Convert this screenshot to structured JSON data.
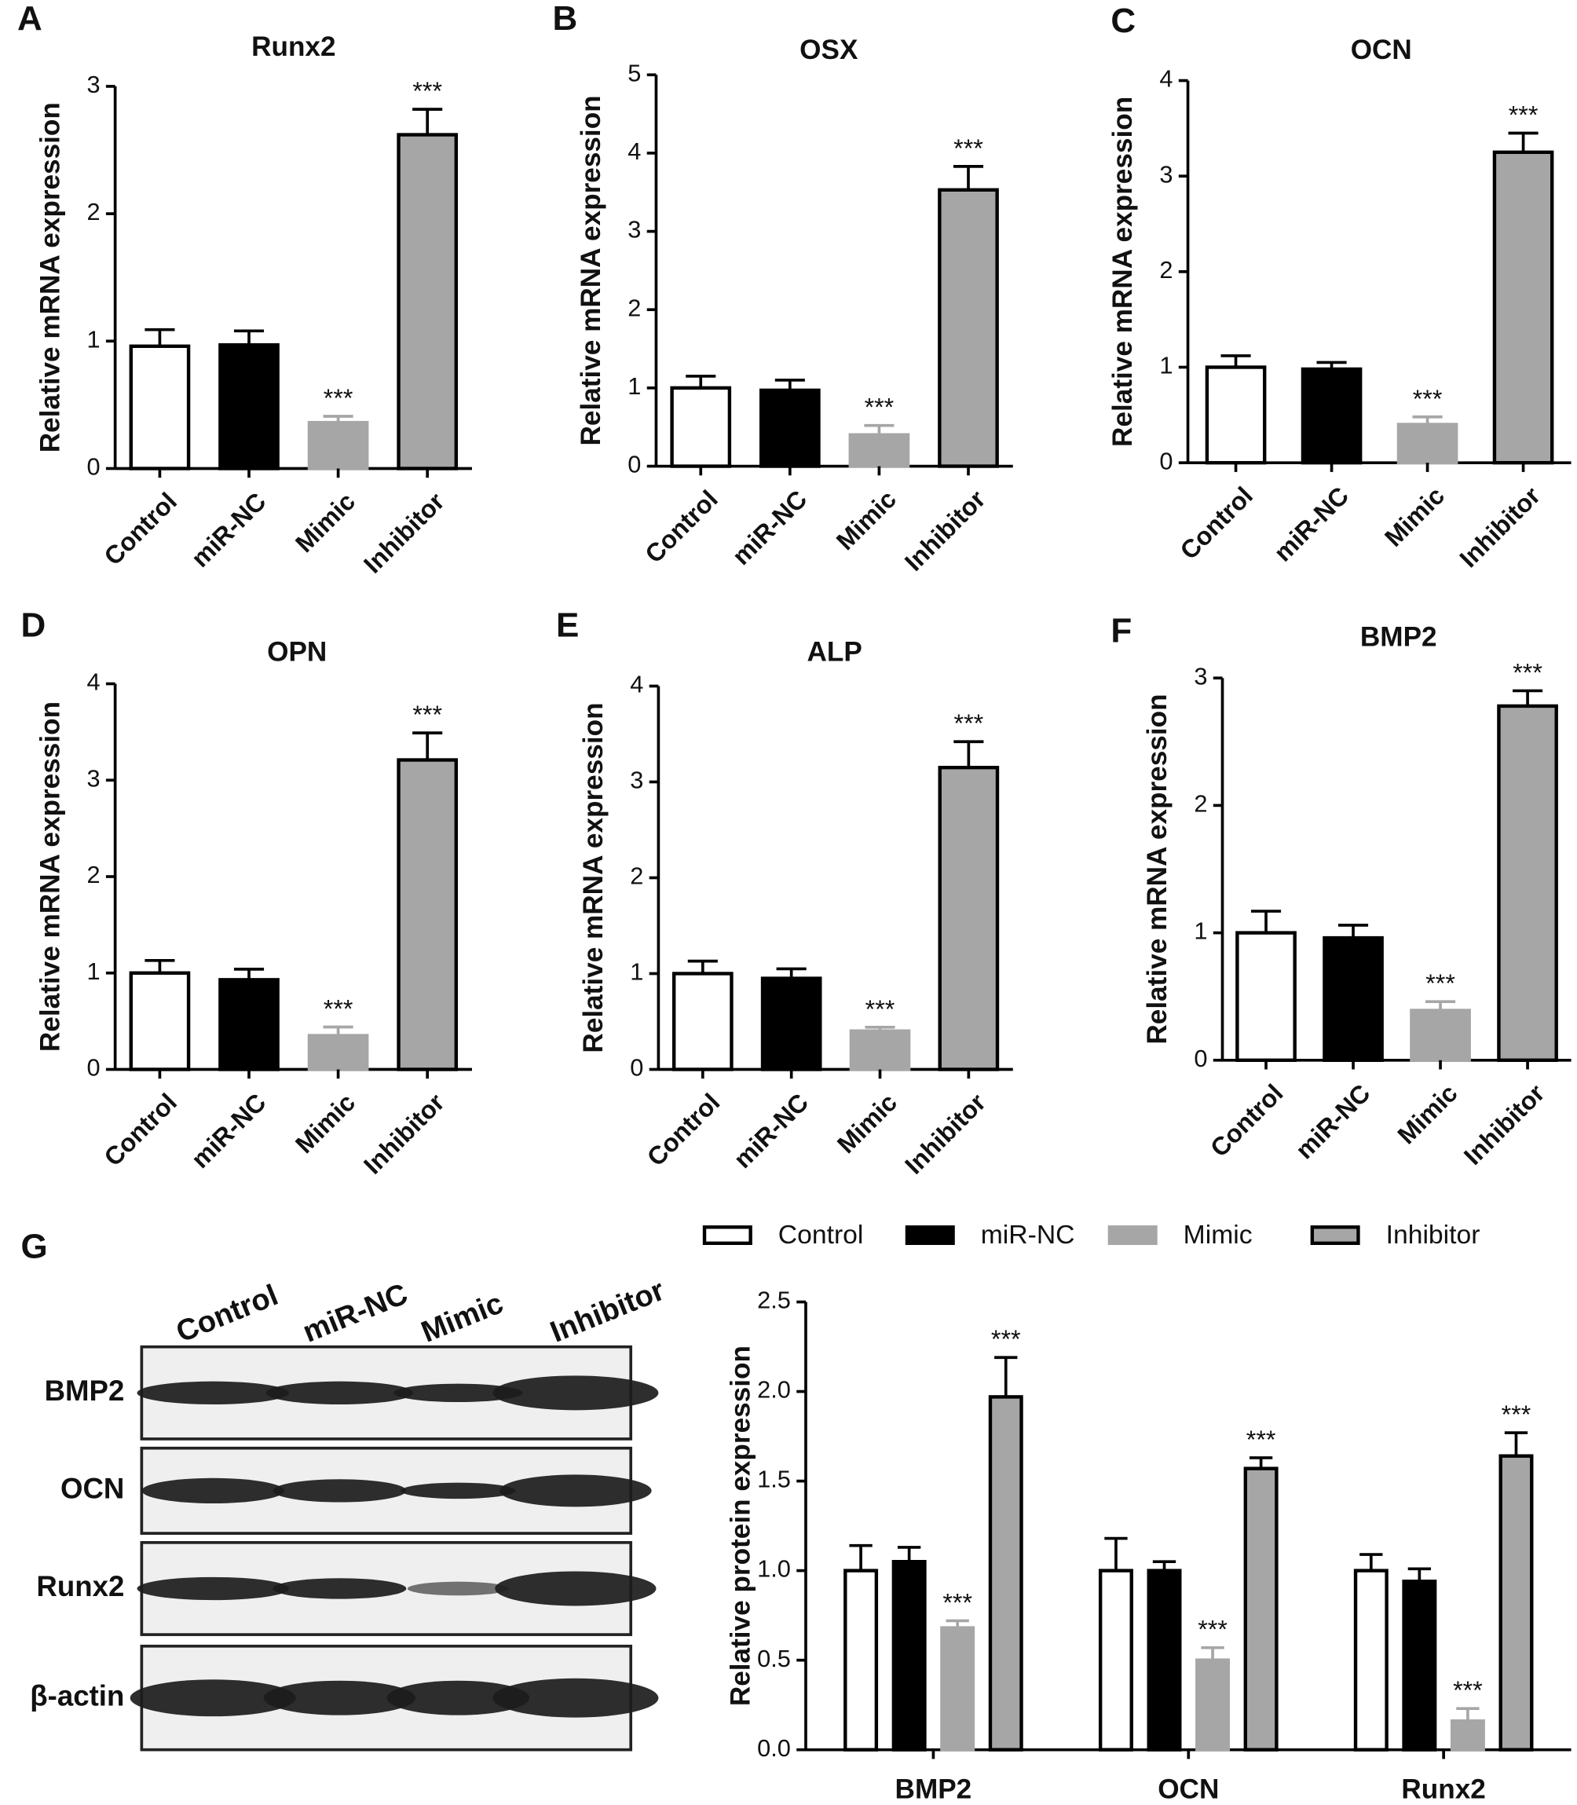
{
  "chart_data": [
    {
      "type": "bar",
      "panel": "A",
      "title": "Runx2",
      "ylabel": "Relative mRNA expression",
      "categories": [
        "Control",
        "miR-NC",
        "Mimic",
        "Inhibitor"
      ],
      "values": [
        0.96,
        0.97,
        0.36,
        2.62
      ],
      "errors": [
        0.13,
        0.11,
        0.05,
        0.2
      ],
      "annotations": [
        null,
        null,
        "***",
        "***"
      ],
      "colors": [
        "#ffffff",
        "#000000",
        "#a6a6a6",
        "#a6a6a6"
      ],
      "edgecolors": [
        "#000000",
        "#000000",
        "#a6a6a6",
        "#000000"
      ],
      "ylim": [
        0,
        3
      ],
      "yticks": [
        0,
        1,
        2,
        3
      ]
    },
    {
      "type": "bar",
      "panel": "B",
      "title": "OSX",
      "ylabel": "Relative mRNA expression",
      "categories": [
        "Control",
        "miR-NC",
        "Mimic",
        "Inhibitor"
      ],
      "values": [
        1.0,
        0.97,
        0.4,
        3.53
      ],
      "errors": [
        0.15,
        0.13,
        0.12,
        0.3
      ],
      "annotations": [
        null,
        null,
        "***",
        "***"
      ],
      "colors": [
        "#ffffff",
        "#000000",
        "#a6a6a6",
        "#a6a6a6"
      ],
      "edgecolors": [
        "#000000",
        "#000000",
        "#a6a6a6",
        "#000000"
      ],
      "ylim": [
        0,
        5
      ],
      "yticks": [
        0,
        1,
        2,
        3,
        4,
        5
      ]
    },
    {
      "type": "bar",
      "panel": "C",
      "title": "OCN",
      "ylabel": "Relative mRNA expression",
      "categories": [
        "Control",
        "miR-NC",
        "Mimic",
        "Inhibitor"
      ],
      "values": [
        1.0,
        0.98,
        0.4,
        3.25
      ],
      "errors": [
        0.12,
        0.07,
        0.08,
        0.2
      ],
      "annotations": [
        null,
        null,
        "***",
        "***"
      ],
      "colors": [
        "#ffffff",
        "#000000",
        "#a6a6a6",
        "#a6a6a6"
      ],
      "edgecolors": [
        "#000000",
        "#000000",
        "#a6a6a6",
        "#000000"
      ],
      "ylim": [
        0,
        4
      ],
      "yticks": [
        0,
        1,
        2,
        3,
        4
      ]
    },
    {
      "type": "bar",
      "panel": "D",
      "title": "OPN",
      "ylabel": "Relative mRNA expression",
      "categories": [
        "Control",
        "miR-NC",
        "Mimic",
        "Inhibitor"
      ],
      "values": [
        1.0,
        0.93,
        0.35,
        3.21
      ],
      "errors": [
        0.13,
        0.11,
        0.09,
        0.28
      ],
      "annotations": [
        null,
        null,
        "***",
        "***"
      ],
      "colors": [
        "#ffffff",
        "#000000",
        "#a6a6a6",
        "#a6a6a6"
      ],
      "edgecolors": [
        "#000000",
        "#000000",
        "#a6a6a6",
        "#000000"
      ],
      "ylim": [
        0,
        4
      ],
      "yticks": [
        0,
        1,
        2,
        3,
        4
      ]
    },
    {
      "type": "bar",
      "panel": "E",
      "title": "ALP",
      "ylabel": "Relative mRNA expression",
      "categories": [
        "Control",
        "miR-NC",
        "Mimic",
        "Inhibitor"
      ],
      "values": [
        1.0,
        0.95,
        0.4,
        3.15
      ],
      "errors": [
        0.13,
        0.1,
        0.04,
        0.27
      ],
      "annotations": [
        null,
        null,
        "***",
        "***"
      ],
      "colors": [
        "#ffffff",
        "#000000",
        "#a6a6a6",
        "#a6a6a6"
      ],
      "edgecolors": [
        "#000000",
        "#000000",
        "#a6a6a6",
        "#000000"
      ],
      "ylim": [
        0,
        4
      ],
      "yticks": [
        0,
        1,
        2,
        3,
        4
      ]
    },
    {
      "type": "bar",
      "panel": "F",
      "title": "BMP2",
      "ylabel": "Relative mRNA expression",
      "categories": [
        "Control",
        "miR-NC",
        "Mimic",
        "Inhibitor"
      ],
      "values": [
        1.0,
        0.96,
        0.39,
        2.78
      ],
      "errors": [
        0.17,
        0.1,
        0.07,
        0.12
      ],
      "annotations": [
        null,
        null,
        "***",
        "***"
      ],
      "colors": [
        "#ffffff",
        "#000000",
        "#a6a6a6",
        "#a6a6a6"
      ],
      "edgecolors": [
        "#000000",
        "#000000",
        "#a6a6a6",
        "#000000"
      ],
      "ylim": [
        0,
        3
      ],
      "yticks": [
        0,
        1,
        2,
        3
      ]
    },
    {
      "type": "grouped_bar",
      "panel": "G",
      "ylabel": "Relative protein expression",
      "categories": [
        "BMP2",
        "OCN",
        "Runx2"
      ],
      "series": [
        {
          "name": "Control",
          "color": "#ffffff",
          "edgecolor": "#000000",
          "values": [
            1.0,
            1.0,
            1.0
          ],
          "errors": [
            0.14,
            0.18,
            0.09
          ],
          "annotations": [
            null,
            null,
            null
          ]
        },
        {
          "name": "miR-NC",
          "color": "#000000",
          "edgecolor": "#000000",
          "values": [
            1.05,
            1.0,
            0.94
          ],
          "errors": [
            0.08,
            0.05,
            0.07
          ],
          "annotations": [
            null,
            null,
            null
          ]
        },
        {
          "name": "Mimic",
          "color": "#a6a6a6",
          "edgecolor": "#a6a6a6",
          "values": [
            0.68,
            0.5,
            0.16
          ],
          "errors": [
            0.04,
            0.07,
            0.07
          ],
          "annotations": [
            "***",
            "***",
            "***"
          ]
        },
        {
          "name": "Inhibitor",
          "color": "#a6a6a6",
          "edgecolor": "#000000",
          "values": [
            1.97,
            1.57,
            1.64
          ],
          "errors": [
            0.22,
            0.06,
            0.13
          ],
          "annotations": [
            "***",
            "***",
            "***"
          ]
        }
      ],
      "ylim": [
        0,
        2.5
      ],
      "yticks": [
        {
          "value": 0,
          "label": "0.0"
        },
        0.5,
        {
          "value": 1,
          "label": "1.0"
        },
        1.5,
        {
          "value": 2,
          "label": "2.0"
        },
        2.5
      ]
    }
  ],
  "blot": {
    "lanes": [
      "Control",
      "miR-NC",
      "Mimic",
      "Inhibitor"
    ],
    "rows": [
      "BMP2",
      "OCN",
      "Runx2",
      "β-actin"
    ]
  }
}
